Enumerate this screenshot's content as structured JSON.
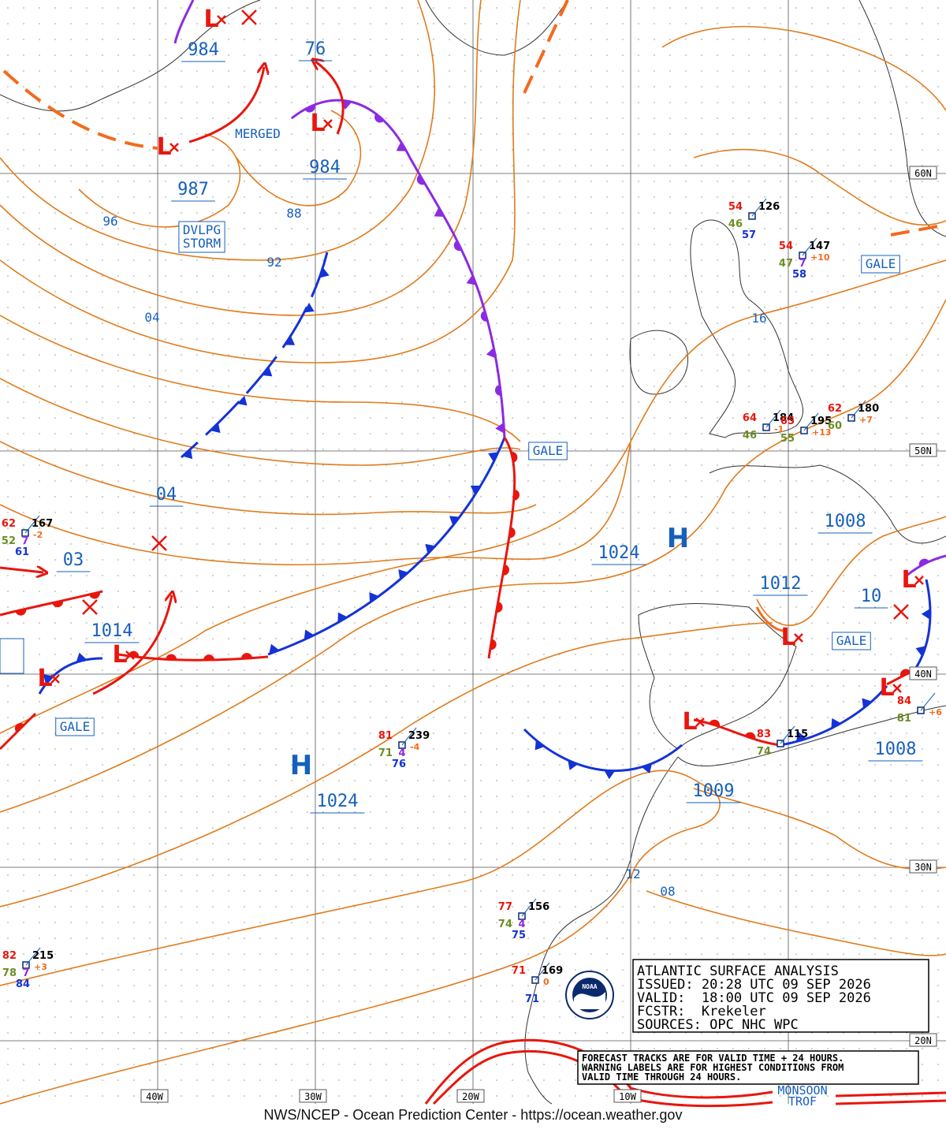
{
  "map": {
    "pressure_labels": [
      "984",
      "76",
      "984",
      "987",
      "96",
      "88",
      "92",
      "04",
      "04",
      "03",
      "1014",
      "1024",
      "1024",
      "1008",
      "1012",
      "10",
      "1008",
      "1009",
      "16",
      "12",
      "08"
    ],
    "highs": [
      "H",
      "H"
    ],
    "lows": [
      "L",
      "L",
      "L",
      "L",
      "L",
      "L",
      "L",
      "L",
      "L"
    ],
    "warnings": [
      "GALE",
      "GALE",
      "GALE",
      "GALE"
    ],
    "storm_warning": [
      "DVLPG",
      "STORM"
    ],
    "merged_label": "MERGED",
    "trough_label": [
      "MONSOON",
      "TROF"
    ],
    "lat_labels": [
      "60N",
      "50N",
      "40N",
      "30N",
      "20N"
    ],
    "lon_labels": [
      "40W",
      "30W",
      "20W",
      "10W"
    ],
    "info_box": [
      "ATLANTIC SURFACE ANALYSIS",
      "ISSUED: 20:28 UTC 09 SEP 2026",
      "VALID:  18:00 UTC 09 SEP 2026",
      "FCSTR:  Krekeler",
      "SOURCES: OPC NHC WPC"
    ],
    "note": [
      "FORECAST TRACKS ARE FOR VALID TIME + 24 HOURS.",
      "WARNING LABELS ARE FOR HIGHEST CONDITIONS FROM",
      "VALID TIME THROUGH 24 HOURS."
    ],
    "logo_text": "NOAA",
    "footer": "NWS/NCEP - Ocean Prediction Center - https://ocean.weather.gov",
    "stations": [
      {
        "temperature": "54",
        "pressure": "126",
        "dewpoint": "46",
        "sea_temp": "57"
      },
      {
        "temperature": "54",
        "pressure": "147",
        "tendency": "+10",
        "dewpoint": "47",
        "waves": "7",
        "sea_temp": "58"
      },
      {
        "temperature": "64",
        "pressure": "184",
        "tendency": "-1",
        "dewpoint": "46"
      },
      {
        "temperature": "65",
        "pressure": "195",
        "tendency": "+13",
        "dewpoint": "55"
      },
      {
        "temperature": "62",
        "pressure": "180",
        "tendency": "+7",
        "dewpoint": "60"
      },
      {
        "temperature": "62",
        "pressure": "167",
        "tendency": "-2",
        "dewpoint": "52",
        "waves": "7",
        "sea_temp": "61"
      },
      {
        "temperature": "81",
        "pressure": "239",
        "tendency": "-4",
        "dewpoint": "71",
        "waves": "4",
        "sea_temp": "76"
      },
      {
        "temperature": "77",
        "pressure": "156",
        "dewpoint": "74",
        "waves": "4",
        "sea_temp": "75"
      },
      {
        "temperature": "71",
        "pressure": "169",
        "tendency": "0",
        "sea_temp": "71"
      },
      {
        "temperature": "82",
        "pressure": "215",
        "tendency": "+3",
        "dewpoint": "78",
        "waves": "7",
        "sea_temp": "84"
      },
      {
        "temperature": "84",
        "tendency": "+6",
        "dewpoint": "81"
      },
      {
        "temperature": "83",
        "pressure": "115",
        "dewpoint": "74"
      }
    ]
  }
}
